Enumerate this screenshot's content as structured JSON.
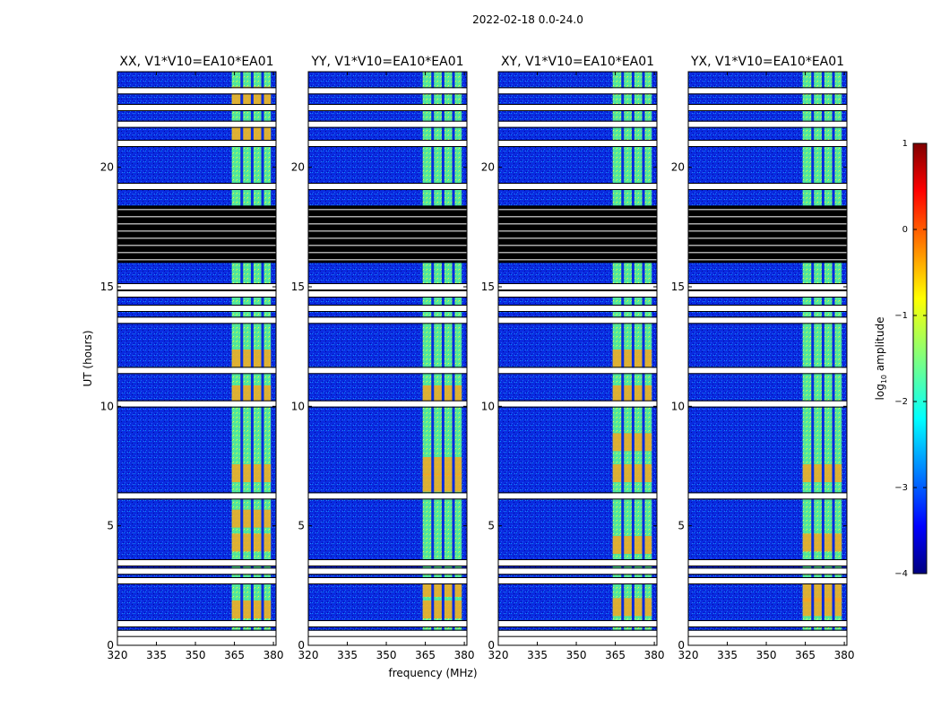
{
  "figure_title": "2022-02-18 0.0-24.0",
  "chart_data": {
    "type": "heatmap",
    "shared_xlabel": "frequency (MHz)",
    "shared_ylabel": "UT (hours)",
    "xlim": [
      320,
      381
    ],
    "ylim": [
      0,
      24
    ],
    "x_ticks": [
      320,
      335,
      350,
      365,
      380
    ],
    "y_ticks": [
      0,
      5,
      10,
      15,
      20
    ],
    "rfi_band_mhz": [
      364,
      379
    ],
    "rfi_channel_edges_mhz": [
      368,
      372,
      376
    ],
    "blank_rows_ut": [
      0.5,
      0.9,
      2.7,
      3.1,
      3.45,
      6.25,
      10.1,
      11.5,
      13.6,
      14.1,
      14.7,
      15.0,
      19.2,
      21.0,
      21.8,
      22.5,
      23.2
    ],
    "black_flag_band_ut": [
      16.0,
      18.4
    ],
    "data_range_ut": [
      0.5,
      24.0
    ],
    "panels": [
      {
        "title": "XX, V1*V10=EA10*EA01",
        "strong_hours": [
          1.5,
          4.3,
          5.3,
          7.2,
          10.5,
          12.0,
          21.5,
          23.0
        ]
      },
      {
        "title": "YY, V1*V10=EA10*EA01",
        "strong_hours": [
          1.5,
          2.4,
          6.8,
          7.5,
          10.5
        ]
      },
      {
        "title": "XY, V1*V10=EA10*EA01",
        "strong_hours": [
          1.6,
          4.2,
          7.2,
          8.5,
          10.5,
          12.0
        ]
      },
      {
        "title": "YX, V1*V10=EA10*EA01",
        "strong_hours": [
          1.6,
          2.2,
          4.3,
          7.2
        ]
      }
    ],
    "colorbar": {
      "label": "log$_{10}$ amplitude",
      "range": [
        -4,
        1
      ],
      "ticks": [
        "1",
        "0",
        "−1",
        "−2",
        "−3",
        "−4"
      ],
      "colormap": "jet"
    }
  }
}
